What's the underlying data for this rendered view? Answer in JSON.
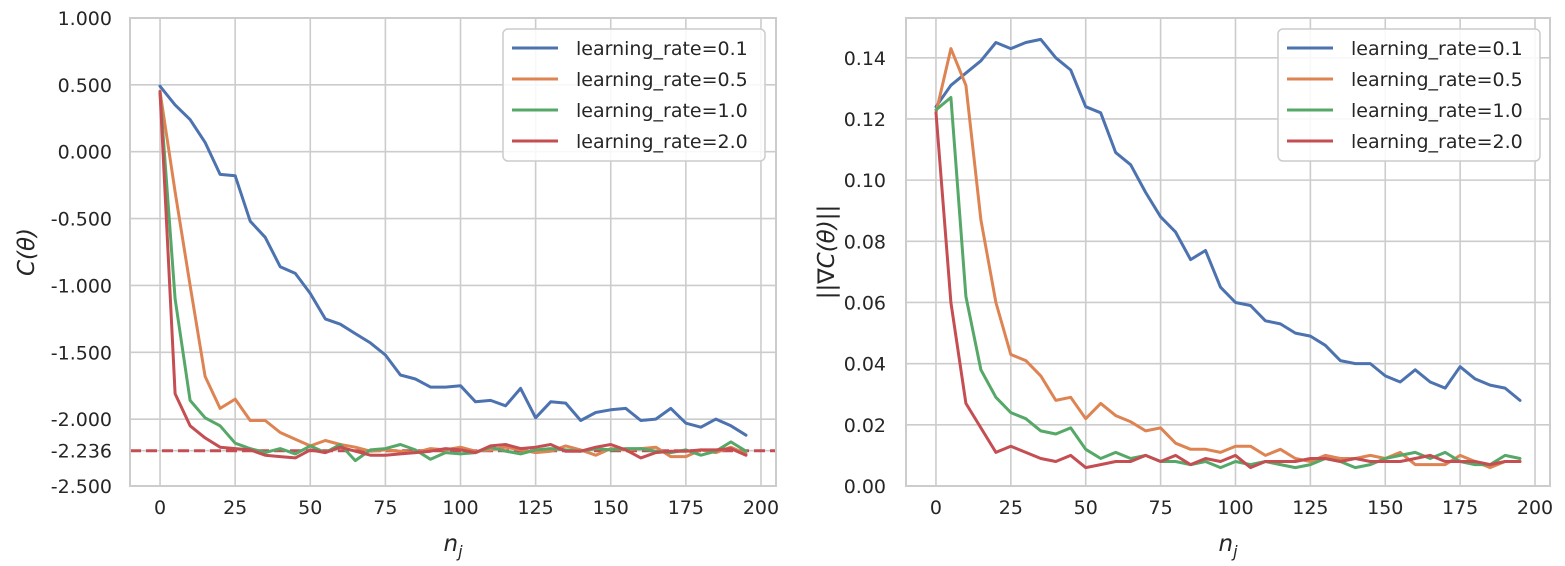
{
  "chart_data": [
    {
      "type": "line",
      "xlabel": "n_j",
      "ylabel": "C(θ)",
      "xlim": [
        -10,
        205
      ],
      "ylim": [
        -2.5,
        1.0
      ],
      "xticks": [
        0,
        25,
        50,
        75,
        100,
        125,
        150,
        175,
        200
      ],
      "yticks": [
        1.0,
        0.5,
        0.0,
        -0.5,
        -1.0,
        -1.5,
        -2.0,
        -2.236,
        -2.5
      ],
      "ytick_labels": [
        "1.000",
        "0.500",
        "0.000",
        "-0.500",
        "-1.000",
        "-1.500",
        "-2.000",
        "-2.236",
        "-2.500"
      ],
      "grid": true,
      "legend_position": "top-right",
      "reference_line": {
        "y": -2.236,
        "style": "dashed",
        "color": "#c44e52"
      },
      "x": [
        0,
        5,
        10,
        15,
        20,
        25,
        30,
        35,
        40,
        45,
        50,
        55,
        60,
        65,
        70,
        75,
        80,
        85,
        90,
        95,
        100,
        105,
        110,
        115,
        120,
        125,
        130,
        135,
        140,
        145,
        150,
        155,
        160,
        165,
        170,
        175,
        180,
        185,
        190,
        195
      ],
      "series": [
        {
          "name": "learning_rate=0.1",
          "color": "#4c72b0",
          "values": [
            0.49,
            0.35,
            0.24,
            0.07,
            -0.17,
            -0.18,
            -0.52,
            -0.64,
            -0.86,
            -0.91,
            -1.06,
            -1.25,
            -1.29,
            -1.36,
            -1.43,
            -1.52,
            -1.67,
            -1.7,
            -1.76,
            -1.76,
            -1.75,
            -1.87,
            -1.86,
            -1.9,
            -1.77,
            -1.99,
            -1.87,
            -1.88,
            -2.01,
            -1.95,
            -1.93,
            -1.92,
            -2.01,
            -2.0,
            -1.92,
            -2.03,
            -2.06,
            -2.0,
            -2.05,
            -2.12
          ]
        },
        {
          "name": "learning_rate=0.5",
          "color": "#dd8452",
          "values": [
            0.45,
            -0.3,
            -1.0,
            -1.68,
            -1.92,
            -1.85,
            -2.01,
            -2.01,
            -2.1,
            -2.15,
            -2.2,
            -2.16,
            -2.19,
            -2.21,
            -2.24,
            -2.23,
            -2.24,
            -2.25,
            -2.22,
            -2.23,
            -2.21,
            -2.24,
            -2.23,
            -2.21,
            -2.23,
            -2.25,
            -2.24,
            -2.2,
            -2.23,
            -2.27,
            -2.22,
            -2.23,
            -2.22,
            -2.21,
            -2.28,
            -2.28,
            -2.23,
            -2.25,
            -2.21,
            -2.26
          ]
        },
        {
          "name": "learning_rate=1.0",
          "color": "#55a868",
          "values": [
            0.44,
            -1.1,
            -1.86,
            -1.99,
            -2.05,
            -2.18,
            -2.22,
            -2.25,
            -2.22,
            -2.26,
            -2.2,
            -2.25,
            -2.19,
            -2.31,
            -2.23,
            -2.22,
            -2.19,
            -2.23,
            -2.3,
            -2.25,
            -2.26,
            -2.25,
            -2.21,
            -2.24,
            -2.26,
            -2.23,
            -2.22,
            -2.23,
            -2.24,
            -2.22,
            -2.23,
            -2.22,
            -2.22,
            -2.24,
            -2.25,
            -2.23,
            -2.27,
            -2.24,
            -2.17,
            -2.24
          ]
        },
        {
          "name": "learning_rate=2.0",
          "color": "#c44e52",
          "values": [
            0.45,
            -1.81,
            -2.05,
            -2.14,
            -2.21,
            -2.22,
            -2.23,
            -2.27,
            -2.28,
            -2.29,
            -2.23,
            -2.25,
            -2.21,
            -2.24,
            -2.27,
            -2.27,
            -2.26,
            -2.25,
            -2.24,
            -2.22,
            -2.23,
            -2.25,
            -2.2,
            -2.19,
            -2.22,
            -2.21,
            -2.19,
            -2.24,
            -2.24,
            -2.21,
            -2.19,
            -2.23,
            -2.29,
            -2.25,
            -2.24,
            -2.24,
            -2.23,
            -2.23,
            -2.22,
            -2.27
          ]
        }
      ]
    },
    {
      "type": "line",
      "xlabel": "n_j",
      "ylabel": "||∇C(θ)||",
      "xlim": [
        -10,
        205
      ],
      "ylim": [
        0,
        0.153
      ],
      "xticks": [
        0,
        25,
        50,
        75,
        100,
        125,
        150,
        175,
        200
      ],
      "yticks": [
        0.0,
        0.02,
        0.04,
        0.06,
        0.08,
        0.1,
        0.12,
        0.14
      ],
      "ytick_labels": [
        "0.00",
        "0.02",
        "0.04",
        "0.06",
        "0.08",
        "0.10",
        "0.12",
        "0.14"
      ],
      "grid": true,
      "legend_position": "top-right",
      "x": [
        0,
        5,
        10,
        15,
        20,
        25,
        30,
        35,
        40,
        45,
        50,
        55,
        60,
        65,
        70,
        75,
        80,
        85,
        90,
        95,
        100,
        105,
        110,
        115,
        120,
        125,
        130,
        135,
        140,
        145,
        150,
        155,
        160,
        165,
        170,
        175,
        180,
        185,
        190,
        195
      ],
      "series": [
        {
          "name": "learning_rate=0.1",
          "color": "#4c72b0",
          "values": [
            0.124,
            0.131,
            0.135,
            0.139,
            0.145,
            0.143,
            0.145,
            0.146,
            0.14,
            0.136,
            0.124,
            0.122,
            0.109,
            0.105,
            0.096,
            0.088,
            0.083,
            0.074,
            0.077,
            0.065,
            0.06,
            0.059,
            0.054,
            0.053,
            0.05,
            0.049,
            0.046,
            0.041,
            0.04,
            0.04,
            0.036,
            0.034,
            0.038,
            0.034,
            0.032,
            0.039,
            0.035,
            0.033,
            0.032,
            0.028
          ]
        },
        {
          "name": "learning_rate=0.5",
          "color": "#dd8452",
          "values": [
            0.122,
            0.143,
            0.131,
            0.087,
            0.06,
            0.043,
            0.041,
            0.036,
            0.028,
            0.029,
            0.022,
            0.027,
            0.023,
            0.021,
            0.018,
            0.019,
            0.014,
            0.012,
            0.012,
            0.011,
            0.013,
            0.013,
            0.01,
            0.012,
            0.009,
            0.008,
            0.01,
            0.009,
            0.009,
            0.01,
            0.009,
            0.011,
            0.007,
            0.007,
            0.007,
            0.01,
            0.008,
            0.006,
            0.008,
            0.008
          ]
        },
        {
          "name": "learning_rate=1.0",
          "color": "#55a868",
          "values": [
            0.123,
            0.127,
            0.062,
            0.038,
            0.029,
            0.024,
            0.022,
            0.018,
            0.017,
            0.019,
            0.012,
            0.009,
            0.011,
            0.009,
            0.01,
            0.008,
            0.008,
            0.007,
            0.008,
            0.006,
            0.008,
            0.007,
            0.008,
            0.007,
            0.006,
            0.007,
            0.009,
            0.008,
            0.006,
            0.007,
            0.009,
            0.01,
            0.011,
            0.009,
            0.011,
            0.008,
            0.007,
            0.007,
            0.01,
            0.009
          ]
        },
        {
          "name": "learning_rate=2.0",
          "color": "#c44e52",
          "values": [
            0.122,
            0.06,
            0.027,
            0.019,
            0.011,
            0.013,
            0.011,
            0.009,
            0.008,
            0.01,
            0.006,
            0.007,
            0.008,
            0.008,
            0.01,
            0.008,
            0.01,
            0.007,
            0.009,
            0.008,
            0.01,
            0.006,
            0.008,
            0.008,
            0.008,
            0.009,
            0.009,
            0.008,
            0.009,
            0.008,
            0.008,
            0.008,
            0.009,
            0.01,
            0.008,
            0.008,
            0.008,
            0.007,
            0.008,
            0.008
          ]
        }
      ]
    }
  ]
}
